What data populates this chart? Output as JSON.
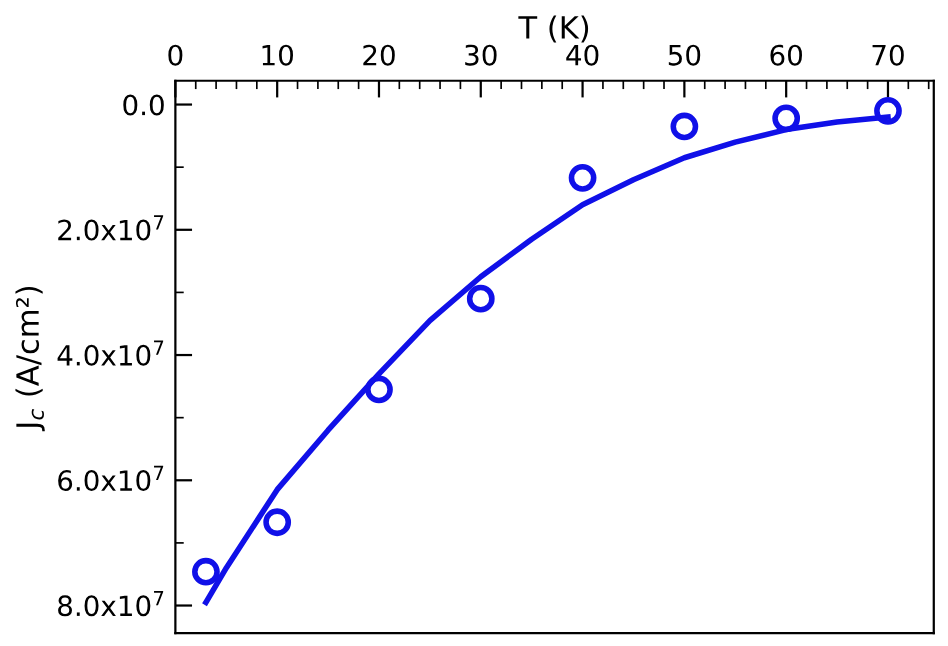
{
  "chart_data": {
    "type": "scatter",
    "xlabel": "T (K)",
    "ylabel": "J$_{c}$ (A/cm²)",
    "xlim": [
      0,
      74.5
    ],
    "ylim": [
      84400000,
      -3800000
    ],
    "xticks": [
      0,
      10,
      20,
      30,
      40,
      50,
      60,
      70
    ],
    "yticks": [
      {
        "value": 0,
        "label": "0.0"
      },
      {
        "value": 20000000,
        "label": "2.0x10$^{7}$"
      },
      {
        "value": 40000000,
        "label": "4.0x10$^{7}$"
      },
      {
        "value": 60000000,
        "label": "6.0x10$^{7}$"
      },
      {
        "value": 80000000,
        "label": "8.0x10$^{7}$"
      }
    ],
    "grid": false,
    "legend": false,
    "series": [
      {
        "marker": "circle",
        "color": "#1010e8",
        "x": [
          3,
          10,
          20,
          30,
          40,
          50,
          60,
          70
        ],
        "values": [
          74600000,
          66700000,
          45500000,
          31000000,
          11700000,
          3500000,
          2200000,
          1000000
        ]
      },
      {
        "type": "line",
        "marker": "none",
        "line_style": "solid",
        "color": "#1010e8",
        "x": [
          3,
          5,
          10,
          15,
          20,
          25,
          30,
          35,
          40,
          45,
          50,
          55,
          60,
          65,
          70
        ],
        "values": [
          79500000,
          74000000,
          61500000,
          52000000,
          43000000,
          34500000,
          27500000,
          21500000,
          16000000,
          12000000,
          8500000,
          6000000,
          4000000,
          2800000,
          2000000
        ]
      }
    ]
  }
}
